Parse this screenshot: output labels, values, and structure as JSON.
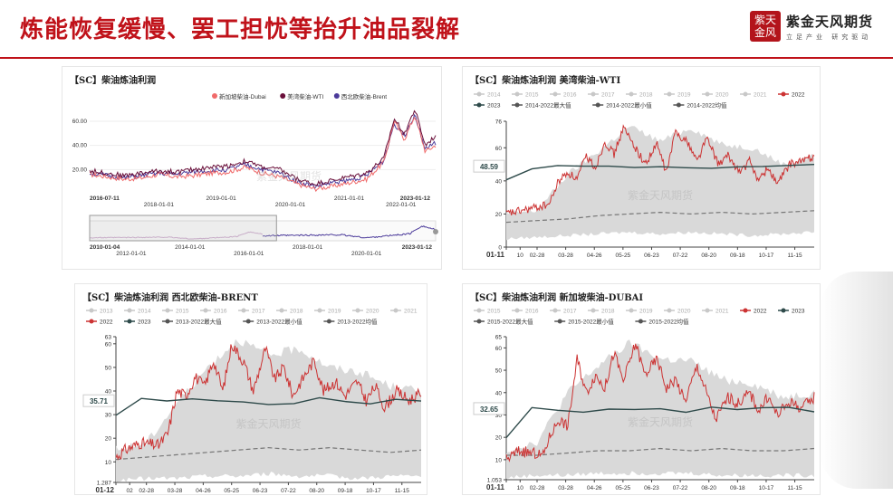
{
  "header": {
    "title": "炼能恢复缓慢、罢工担忧等抬升油品裂解",
    "logo_seal": "紫天金风",
    "logo_name": "紫金天风期货",
    "logo_sub": "立足产业 研究驱动"
  },
  "colors": {
    "title": "#c0121a",
    "p2022": "#cc3333",
    "p2023": "#2e4a4a",
    "avg": "#777777",
    "band": "#d9d9d9",
    "gray": "#c8c8c8",
    "dubai": "#f06a6a",
    "wti": "#6a0f3a",
    "brent": "#4b3a9a"
  },
  "chart_data": [
    {
      "type": "line",
      "title": "【SC】柴油炼油利润",
      "legend": [
        "新加坡柴油-Dubai",
        "美湾柴油-WTI",
        "西北欧柴油-Brent"
      ],
      "yticks": [
        20.0,
        40.0,
        60.0
      ],
      "ylim": [
        0,
        75
      ],
      "xticks": [
        "2016-07-11",
        "2018-01-01",
        "2019-01-01",
        "2020-01-01",
        "2021-01-01",
        "2022-01-01",
        "2023-01-12"
      ],
      "navigator_ticks": [
        "2010-01-04",
        "2012-01-01",
        "2014-01-01",
        "2016-01-01",
        "2018-01-01",
        "2020-01-01",
        "2023-01-12"
      ],
      "anchors_dubai": [
        [
          0,
          16
        ],
        [
          0.05,
          14
        ],
        [
          0.1,
          12
        ],
        [
          0.15,
          13
        ],
        [
          0.2,
          16
        ],
        [
          0.25,
          14
        ],
        [
          0.3,
          15
        ],
        [
          0.35,
          17
        ],
        [
          0.4,
          18
        ],
        [
          0.45,
          22
        ],
        [
          0.5,
          17
        ],
        [
          0.55,
          14
        ],
        [
          0.6,
          8
        ],
        [
          0.65,
          4
        ],
        [
          0.7,
          6
        ],
        [
          0.75,
          9
        ],
        [
          0.8,
          12
        ],
        [
          0.85,
          26
        ],
        [
          0.88,
          60
        ],
        [
          0.91,
          45
        ],
        [
          0.94,
          65
        ],
        [
          0.97,
          35
        ],
        [
          1,
          40
        ]
      ],
      "anchors_wti": [
        [
          0,
          19
        ],
        [
          0.05,
          17
        ],
        [
          0.1,
          15
        ],
        [
          0.15,
          17
        ],
        [
          0.2,
          19
        ],
        [
          0.25,
          18
        ],
        [
          0.3,
          20
        ],
        [
          0.35,
          22
        ],
        [
          0.4,
          23
        ],
        [
          0.45,
          27
        ],
        [
          0.5,
          22
        ],
        [
          0.55,
          20
        ],
        [
          0.6,
          12
        ],
        [
          0.65,
          8
        ],
        [
          0.7,
          11
        ],
        [
          0.75,
          14
        ],
        [
          0.8,
          17
        ],
        [
          0.85,
          29
        ],
        [
          0.88,
          62
        ],
        [
          0.91,
          50
        ],
        [
          0.94,
          70
        ],
        [
          0.97,
          40
        ],
        [
          1,
          48
        ]
      ],
      "anchors_brent": [
        [
          0,
          17
        ],
        [
          0.05,
          15
        ],
        [
          0.1,
          13
        ],
        [
          0.15,
          15
        ],
        [
          0.2,
          17
        ],
        [
          0.25,
          16
        ],
        [
          0.3,
          18
        ],
        [
          0.35,
          19
        ],
        [
          0.4,
          20
        ],
        [
          0.45,
          24
        ],
        [
          0.5,
          20
        ],
        [
          0.55,
          17
        ],
        [
          0.6,
          10
        ],
        [
          0.65,
          6
        ],
        [
          0.7,
          9
        ],
        [
          0.75,
          11
        ],
        [
          0.8,
          15
        ],
        [
          0.85,
          27
        ],
        [
          0.88,
          58
        ],
        [
          0.91,
          48
        ],
        [
          0.94,
          66
        ],
        [
          0.97,
          37
        ],
        [
          1,
          42
        ]
      ]
    },
    {
      "type": "line",
      "title": "【SC】柴油炼油利润 美湾柴油-WTI",
      "legend_gray": [
        "2014",
        "2015",
        "2016",
        "2017",
        "2018",
        "2019",
        "2020",
        "2021"
      ],
      "legend_main": [
        "2022",
        "2023",
        "2014-2022最大值",
        "2014-2022最小值",
        "2014-2022均值"
      ],
      "yticks": [
        0,
        20,
        40,
        60,
        76
      ],
      "ylim": [
        0,
        76
      ],
      "current_label": "48.59",
      "xticks": [
        "01-11",
        "10",
        "02-28",
        "03-28",
        "04-26",
        "05-25",
        "06-23",
        "07-22",
        "08-20",
        "09-18",
        "10-17",
        "11-15"
      ],
      "y2022": [
        [
          0,
          20
        ],
        [
          0.05,
          22
        ],
        [
          0.1,
          24
        ],
        [
          0.14,
          26
        ],
        [
          0.17,
          40
        ],
        [
          0.2,
          45
        ],
        [
          0.23,
          41
        ],
        [
          0.26,
          55
        ],
        [
          0.29,
          48
        ],
        [
          0.32,
          64
        ],
        [
          0.35,
          56
        ],
        [
          0.38,
          72
        ],
        [
          0.42,
          60
        ],
        [
          0.45,
          50
        ],
        [
          0.49,
          62
        ],
        [
          0.52,
          45
        ],
        [
          0.55,
          70
        ],
        [
          0.59,
          63
        ],
        [
          0.62,
          52
        ],
        [
          0.65,
          66
        ],
        [
          0.69,
          50
        ],
        [
          0.72,
          55
        ],
        [
          0.76,
          45
        ],
        [
          0.79,
          52
        ],
        [
          0.82,
          40
        ],
        [
          0.85,
          48
        ],
        [
          0.88,
          38
        ],
        [
          0.92,
          50
        ],
        [
          0.96,
          52
        ],
        [
          1,
          55
        ]
      ],
      "y2023": [
        [
          0,
          41
        ],
        [
          0.01,
          45
        ],
        [
          0.02,
          56
        ],
        [
          0.03,
          48.59
        ]
      ],
      "avg": [
        [
          0,
          15
        ],
        [
          0.1,
          16
        ],
        [
          0.2,
          17
        ],
        [
          0.3,
          19
        ],
        [
          0.4,
          20
        ],
        [
          0.5,
          21
        ],
        [
          0.6,
          20
        ],
        [
          0.7,
          21
        ],
        [
          0.8,
          20
        ],
        [
          0.9,
          21
        ],
        [
          1,
          22
        ]
      ],
      "bmax": [
        [
          0,
          20
        ],
        [
          0.1,
          22
        ],
        [
          0.2,
          44
        ],
        [
          0.3,
          58
        ],
        [
          0.4,
          73
        ],
        [
          0.5,
          64
        ],
        [
          0.6,
          72
        ],
        [
          0.7,
          62
        ],
        [
          0.8,
          60
        ],
        [
          0.9,
          50
        ],
        [
          1,
          55
        ]
      ],
      "bmin": [
        [
          0,
          5
        ],
        [
          0.1,
          6
        ],
        [
          0.2,
          7
        ],
        [
          0.3,
          8
        ],
        [
          0.4,
          9
        ],
        [
          0.5,
          8
        ],
        [
          0.6,
          9
        ],
        [
          0.7,
          8
        ],
        [
          0.8,
          7
        ],
        [
          0.9,
          8
        ],
        [
          1,
          9
        ]
      ]
    },
    {
      "type": "line",
      "title": "【SC】柴油炼油利润 西北欧柴油-BRENT",
      "legend_gray": [
        "2013",
        "2014",
        "2015",
        "2016",
        "2017",
        "2018",
        "2019",
        "2020",
        "2021"
      ],
      "legend_main": [
        "2022",
        "2023",
        "2013-2022最大值",
        "2013-2022最小值",
        "2013-2022均值"
      ],
      "yticks": [
        1.287,
        10,
        20,
        30,
        40,
        50,
        60,
        63
      ],
      "ylim": [
        1.287,
        63
      ],
      "current_label": "35.71",
      "xticks": [
        "01-12",
        "02",
        "02-28",
        "03-28",
        "04-26",
        "05-25",
        "06-23",
        "07-22",
        "08-20",
        "09-18",
        "10-17",
        "11-15"
      ],
      "y2022": [
        [
          0,
          12
        ],
        [
          0.03,
          15
        ],
        [
          0.08,
          18
        ],
        [
          0.14,
          17
        ],
        [
          0.17,
          22
        ],
        [
          0.2,
          40
        ],
        [
          0.23,
          38
        ],
        [
          0.26,
          46
        ],
        [
          0.29,
          42
        ],
        [
          0.32,
          53
        ],
        [
          0.35,
          40
        ],
        [
          0.38,
          60
        ],
        [
          0.42,
          52
        ],
        [
          0.45,
          40
        ],
        [
          0.49,
          58
        ],
        [
          0.52,
          45
        ],
        [
          0.55,
          50
        ],
        [
          0.58,
          38
        ],
        [
          0.62,
          47
        ],
        [
          0.65,
          53
        ],
        [
          0.68,
          40
        ],
        [
          0.72,
          44
        ],
        [
          0.75,
          38
        ],
        [
          0.79,
          44
        ],
        [
          0.82,
          36
        ],
        [
          0.85,
          42
        ],
        [
          0.88,
          33
        ],
        [
          0.92,
          40
        ],
        [
          0.96,
          36
        ],
        [
          1,
          39
        ]
      ],
      "y2023": [
        [
          0,
          30
        ],
        [
          0.01,
          33
        ],
        [
          0.02,
          34
        ],
        [
          0.03,
          35.71
        ]
      ],
      "avg": [
        [
          0,
          11
        ],
        [
          0.1,
          12
        ],
        [
          0.2,
          13
        ],
        [
          0.3,
          14
        ],
        [
          0.4,
          15
        ],
        [
          0.5,
          16
        ],
        [
          0.6,
          15
        ],
        [
          0.7,
          16
        ],
        [
          0.8,
          15
        ],
        [
          0.9,
          14
        ],
        [
          1,
          15
        ]
      ],
      "bmax": [
        [
          0,
          15
        ],
        [
          0.1,
          18
        ],
        [
          0.2,
          35
        ],
        [
          0.3,
          50
        ],
        [
          0.4,
          62
        ],
        [
          0.5,
          55
        ],
        [
          0.6,
          58
        ],
        [
          0.7,
          50
        ],
        [
          0.8,
          48
        ],
        [
          0.9,
          42
        ],
        [
          1,
          40
        ]
      ],
      "bmin": [
        [
          0,
          2
        ],
        [
          0.1,
          3
        ],
        [
          0.2,
          3
        ],
        [
          0.3,
          4
        ],
        [
          0.4,
          4
        ],
        [
          0.5,
          5
        ],
        [
          0.6,
          4
        ],
        [
          0.7,
          4
        ],
        [
          0.8,
          3
        ],
        [
          0.9,
          4
        ],
        [
          1,
          4
        ]
      ]
    },
    {
      "type": "line",
      "title": "【SC】柴油炼油利润 新加坡柴油-DUBAI",
      "legend_gray": [
        "2015",
        "2016",
        "2017",
        "2018",
        "2019",
        "2020",
        "2021"
      ],
      "legend_main": [
        "2022",
        "2023",
        "2015-2022最大值",
        "2015-2022最小值",
        "2015-2022均值"
      ],
      "yticks": [
        1.053,
        10,
        20,
        30,
        40,
        50,
        60,
        65
      ],
      "ylim": [
        1.053,
        65
      ],
      "current_label": "32.65",
      "xticks": [
        "01-11",
        "10",
        "02-28",
        "03-28",
        "04-26",
        "05-25",
        "06-23",
        "07-22",
        "08-20",
        "09-18",
        "10-17",
        "11-15"
      ],
      "y2022": [
        [
          0,
          10
        ],
        [
          0.04,
          14
        ],
        [
          0.08,
          13
        ],
        [
          0.12,
          12
        ],
        [
          0.14,
          20
        ],
        [
          0.17,
          28
        ],
        [
          0.2,
          25
        ],
        [
          0.23,
          55
        ],
        [
          0.26,
          40
        ],
        [
          0.29,
          48
        ],
        [
          0.32,
          42
        ],
        [
          0.35,
          58
        ],
        [
          0.38,
          45
        ],
        [
          0.42,
          62
        ],
        [
          0.45,
          48
        ],
        [
          0.49,
          55
        ],
        [
          0.52,
          42
        ],
        [
          0.55,
          46
        ],
        [
          0.58,
          36
        ],
        [
          0.62,
          52
        ],
        [
          0.65,
          40
        ],
        [
          0.68,
          28
        ],
        [
          0.72,
          38
        ],
        [
          0.75,
          35
        ],
        [
          0.79,
          40
        ],
        [
          0.82,
          32
        ],
        [
          0.85,
          38
        ],
        [
          0.88,
          30
        ],
        [
          0.92,
          36
        ],
        [
          0.96,
          33
        ],
        [
          1,
          38
        ]
      ],
      "y2023": [
        [
          0,
          20
        ],
        [
          0.01,
          26
        ],
        [
          0.02,
          30
        ],
        [
          0.03,
          32.65
        ]
      ],
      "avg": [
        [
          0,
          12
        ],
        [
          0.1,
          12
        ],
        [
          0.2,
          13
        ],
        [
          0.3,
          14
        ],
        [
          0.4,
          14
        ],
        [
          0.5,
          15
        ],
        [
          0.6,
          14
        ],
        [
          0.7,
          15
        ],
        [
          0.8,
          14
        ],
        [
          0.9,
          14
        ],
        [
          1,
          15
        ]
      ],
      "bmax": [
        [
          0,
          14
        ],
        [
          0.1,
          18
        ],
        [
          0.2,
          40
        ],
        [
          0.3,
          52
        ],
        [
          0.4,
          62
        ],
        [
          0.5,
          55
        ],
        [
          0.6,
          54
        ],
        [
          0.7,
          46
        ],
        [
          0.8,
          44
        ],
        [
          0.9,
          38
        ],
        [
          1,
          40
        ]
      ],
      "bmin": [
        [
          0,
          2
        ],
        [
          0.1,
          3
        ],
        [
          0.2,
          3
        ],
        [
          0.3,
          4
        ],
        [
          0.4,
          4
        ],
        [
          0.5,
          4
        ],
        [
          0.6,
          4
        ],
        [
          0.7,
          3
        ],
        [
          0.8,
          3
        ],
        [
          0.9,
          3
        ],
        [
          1,
          3
        ]
      ]
    }
  ]
}
